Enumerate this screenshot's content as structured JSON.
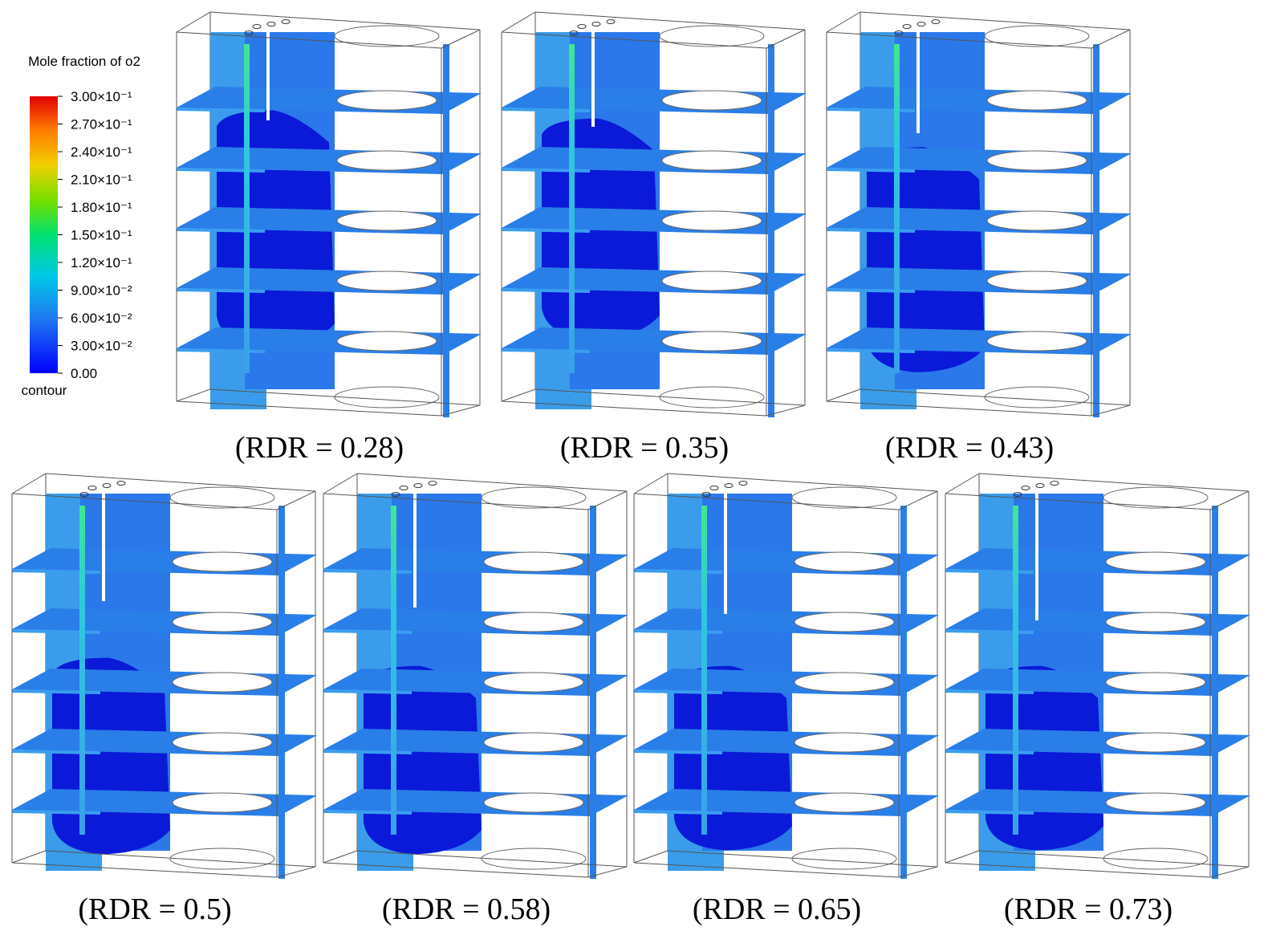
{
  "legend": {
    "title": "Mole fraction of o2",
    "ticks": [
      "3.00×10⁻¹",
      "2.70×10⁻¹",
      "2.40×10⁻¹",
      "2.10×10⁻¹",
      "1.80×10⁻¹",
      "1.50×10⁻¹",
      "1.20×10⁻¹",
      "9.00×10⁻²",
      "6.00×10⁻²",
      "3.00×10⁻²",
      "0.00"
    ],
    "footer": "contour"
  },
  "panels": [
    {
      "caption": "(RDR = 0.28)"
    },
    {
      "caption": "(RDR = 0.35)"
    },
    {
      "caption": "(RDR = 0.43)"
    },
    {
      "caption": "(RDR = 0.5)"
    },
    {
      "caption": "(RDR = 0.58)"
    },
    {
      "caption": "(RDR = 0.65)"
    },
    {
      "caption": "(RDR = 0.73)"
    }
  ]
}
